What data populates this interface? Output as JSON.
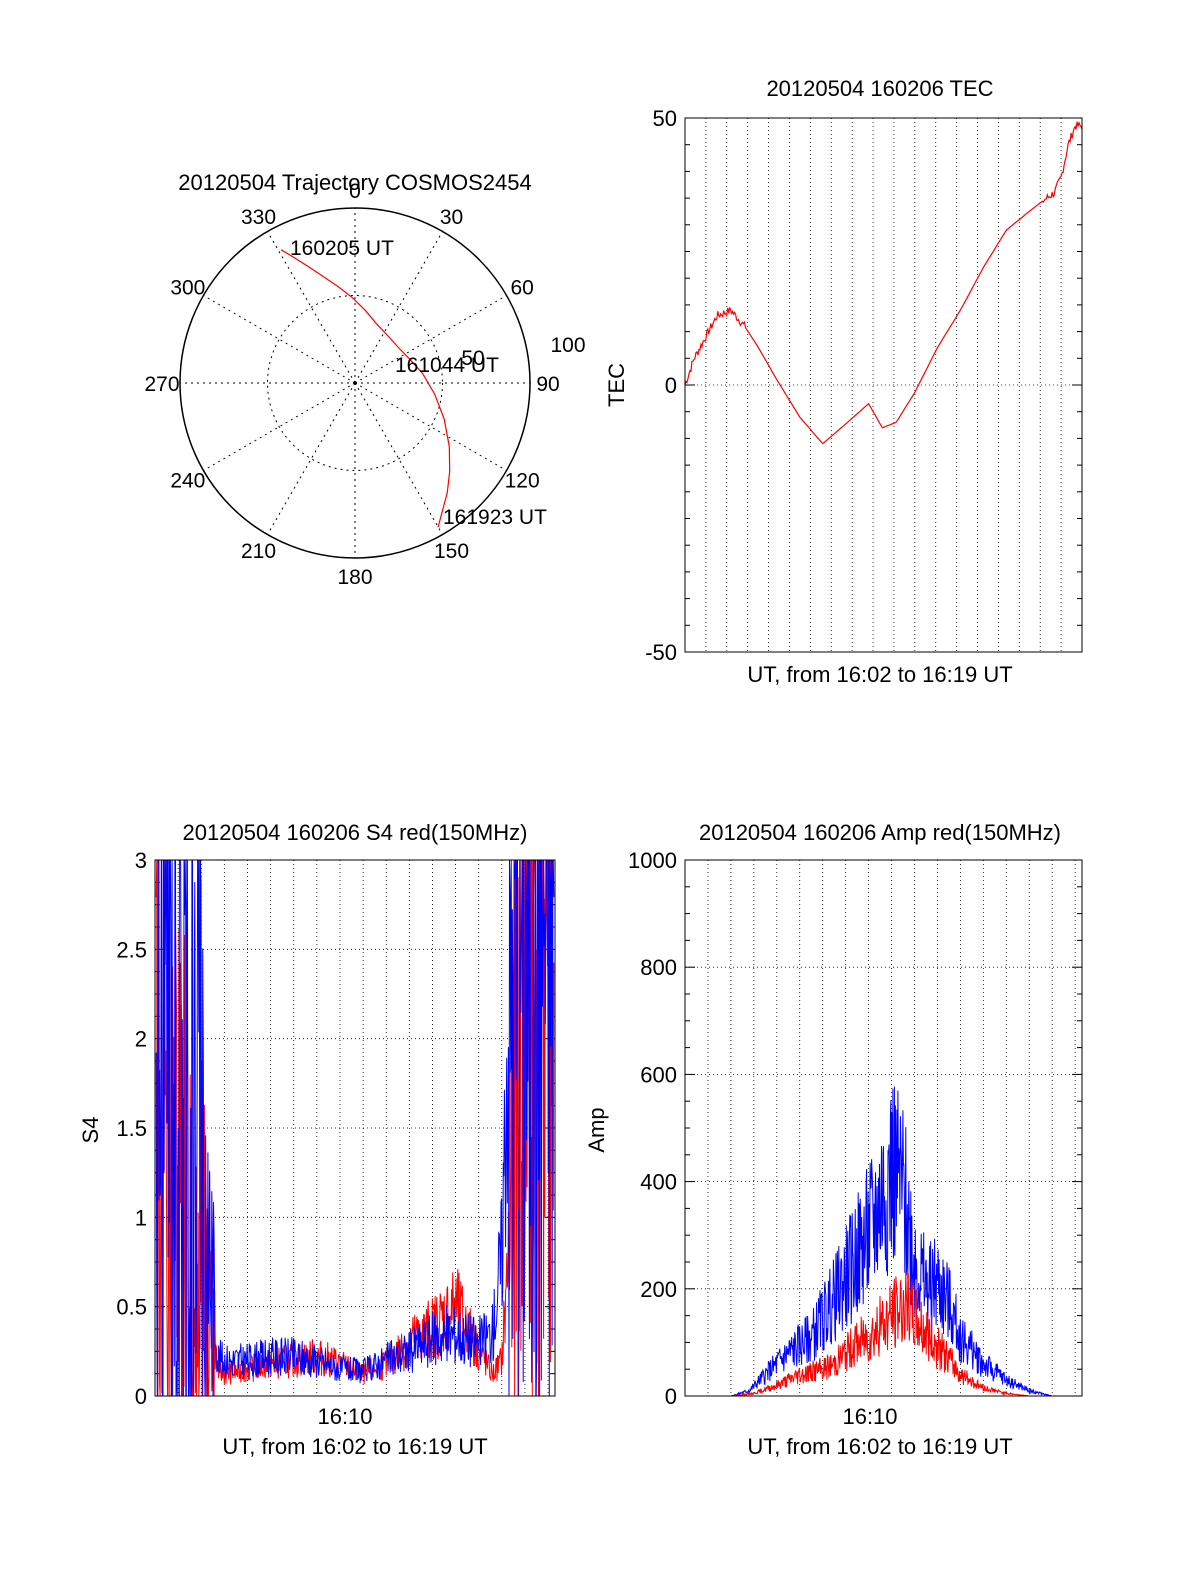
{
  "colors": {
    "red": "#ff0000",
    "blue": "#0000ff",
    "axis": "#000000",
    "grid": "#000000"
  },
  "chart_data": [
    {
      "id": "polar",
      "type": "polar",
      "title": "20120504 Trajectory COSMOS2454",
      "angle_labels": [
        "0",
        "30",
        "60",
        "90",
        "120",
        "150",
        "180",
        "210",
        "240",
        "270",
        "300",
        "330"
      ],
      "radial_ticks": [
        50,
        100
      ],
      "radial_max": 100,
      "grid": true,
      "trajectory": {
        "color": "red",
        "points": [
          [
            331,
            87
          ],
          [
            334,
            80
          ],
          [
            338,
            72
          ],
          [
            343,
            64
          ],
          [
            350,
            56
          ],
          [
            358,
            49
          ],
          [
            8,
            42
          ],
          [
            20,
            36
          ],
          [
            34,
            33
          ],
          [
            50,
            32
          ],
          [
            66,
            34
          ],
          [
            82,
            39
          ],
          [
            98,
            46
          ],
          [
            112,
            55
          ],
          [
            124,
            65
          ],
          [
            133,
            74
          ],
          [
            140,
            82
          ],
          [
            146,
            89
          ],
          [
            150,
            95
          ]
        ]
      },
      "annotations": [
        "160205 UT",
        "161044 UT",
        "161923 UT"
      ]
    },
    {
      "id": "tec",
      "type": "line",
      "title": "20120504 160206 TEC",
      "xlabel": "UT, from 16:02 to 16:19 UT",
      "ylabel": "TEC",
      "ylim": [
        -50,
        50
      ],
      "yticks": [
        "50",
        "0",
        "-50"
      ],
      "xlim": [
        0,
        17.3
      ],
      "grid": "vertical dotted",
      "series": [
        {
          "color": "red",
          "x": [
            0,
            0.4,
            0.9,
            1.4,
            2.0,
            2.6,
            3.2,
            4.0,
            5.0,
            6.0,
            7.0,
            8.0,
            8.6,
            9.2,
            10.0,
            11.0,
            12.0,
            13.0,
            14.0,
            15.0,
            15.6,
            16.1,
            16.4,
            16.7,
            17.0,
            17.3
          ],
          "y": [
            0,
            5,
            9,
            13,
            14,
            11,
            7,
            1,
            -6,
            -11,
            -7.3,
            -3.5,
            -8,
            -7,
            -1.5,
            7,
            14,
            22,
            29,
            32.5,
            34.5,
            36,
            39,
            45,
            48.5,
            48.5
          ]
        }
      ]
    },
    {
      "id": "s4",
      "type": "line",
      "title": "20120504 160206 S4 red(150MHz)",
      "xlabel": "UT, from 16:02 to 16:19 UT",
      "ylabel": "S4",
      "ylim": [
        0,
        3
      ],
      "yticks": [
        "3",
        "2.5",
        "2",
        "1.5",
        "1",
        "0.5",
        "0"
      ],
      "xtick_label": "16:10",
      "grid": true,
      "series": [
        {
          "color": "red",
          "x": [
            0.2,
            1.0,
            2.0,
            2.4,
            2.7,
            3.0,
            4,
            5,
            6,
            7,
            8,
            9,
            10,
            11,
            12,
            13,
            14,
            14.6,
            15.0,
            15.2,
            15.5,
            15.8,
            16.2,
            16.8
          ],
          "y": [
            1.8,
            1.3,
            0.9,
            0.55,
            0.15,
            0.12,
            0.15,
            0.18,
            0.2,
            0.22,
            0.18,
            0.12,
            0.18,
            0.3,
            0.38,
            0.5,
            0.25,
            0.12,
            0.2,
            0.6,
            1.5,
            2.4,
            2.9,
            3.0
          ]
        },
        {
          "color": "blue",
          "x": [
            0.2,
            1.0,
            2.0,
            2.4,
            2.7,
            3.0,
            4,
            5,
            6,
            7,
            8,
            9,
            10,
            11,
            12,
            13,
            14,
            14.6,
            15.0,
            15.2,
            15.5,
            15.8,
            16.2,
            16.8
          ],
          "y": [
            2.2,
            2.5,
            1.7,
            0.8,
            0.22,
            0.2,
            0.2,
            0.22,
            0.22,
            0.2,
            0.15,
            0.14,
            0.2,
            0.25,
            0.32,
            0.35,
            0.3,
            0.35,
            0.8,
            1.8,
            2.6,
            2.9,
            3.0,
            3.0
          ]
        }
      ]
    },
    {
      "id": "amp",
      "type": "line",
      "title": "20120504 160206 Amp red(150MHz)",
      "xlabel": "UT, from 16:02 to 16:19 UT",
      "ylabel": "Amp",
      "ylim": [
        0,
        1000
      ],
      "yticks": [
        "1000",
        "800",
        "600",
        "400",
        "200",
        "0"
      ],
      "xtick_label": "16:10",
      "grid": true,
      "series": [
        {
          "color": "red",
          "x": [
            0,
            2,
            3,
            4,
            5,
            6,
            6.5,
            7,
            7.5,
            8,
            8.5,
            9,
            9.5,
            10,
            10.5,
            11,
            11.5,
            12,
            13,
            14,
            15,
            16,
            17.3
          ],
          "y": [
            0,
            0,
            5,
            20,
            40,
            50,
            60,
            80,
            100,
            110,
            130,
            150,
            170,
            145,
            120,
            90,
            70,
            40,
            15,
            5,
            0,
            0,
            0
          ]
        },
        {
          "color": "blue",
          "x": [
            0,
            2,
            2.8,
            3.5,
            4.5,
            5.5,
            6.5,
            7,
            7.5,
            8,
            8.5,
            9,
            9.5,
            10,
            10.5,
            11,
            11.5,
            12,
            13,
            14,
            15,
            16,
            17.3
          ],
          "y": [
            0,
            0,
            10,
            40,
            80,
            110,
            180,
            220,
            260,
            300,
            360,
            430,
            380,
            260,
            200,
            210,
            170,
            110,
            60,
            30,
            10,
            0,
            0
          ]
        }
      ]
    }
  ]
}
